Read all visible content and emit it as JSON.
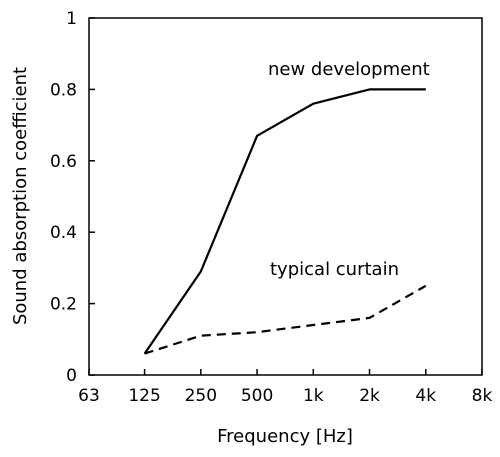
{
  "chart_data": {
    "type": "line",
    "xlabel": "Frequency [Hz]",
    "ylabel": "Sound absorption coefficient",
    "x_scale": "log",
    "x_ticks": [
      "63",
      "125",
      "250",
      "500",
      "1k",
      "2k",
      "4k",
      "8k"
    ],
    "x_tick_values": [
      63,
      125,
      250,
      500,
      1000,
      2000,
      4000,
      8000
    ],
    "y_ticks": [
      "0",
      "0.2",
      "0.4",
      "0.6",
      "0.8",
      "1"
    ],
    "y_tick_values": [
      0,
      0.2,
      0.4,
      0.6,
      0.8,
      1
    ],
    "xlim": [
      63,
      8000
    ],
    "ylim": [
      0,
      1
    ],
    "grid": false,
    "legend": "none",
    "series": [
      {
        "name": "new development",
        "style": "solid",
        "x": [
          125,
          250,
          500,
          1000,
          2000,
          4000
        ],
        "y": [
          0.06,
          0.29,
          0.67,
          0.76,
          0.8,
          0.8
        ]
      },
      {
        "name": "typical curtain",
        "style": "dashed",
        "x": [
          125,
          250,
          500,
          1000,
          2000,
          4000
        ],
        "y": [
          0.06,
          0.11,
          0.12,
          0.14,
          0.16,
          0.25
        ]
      }
    ]
  }
}
